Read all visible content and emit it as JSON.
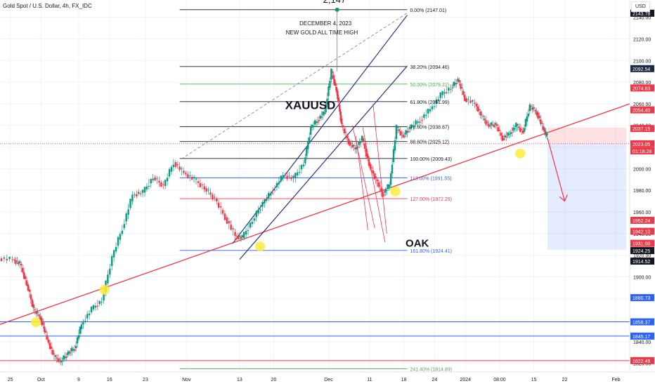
{
  "symbol_title": "Gold Spot / U.S. Dollar, 4h, FX_IDC",
  "currency_button": "USD",
  "chart_data": {
    "type": "candlestick",
    "y_ticks": [
      2140,
      2120,
      2100,
      2080,
      2060,
      2040,
      2020,
      2000,
      1980,
      1960,
      1940,
      1920,
      1900,
      1880,
      1860,
      1840,
      1820
    ],
    "ylim": [
      1812,
      2156
    ],
    "x_ticks": [
      {
        "label": "25",
        "x": 0.3
      },
      {
        "label": "Oct",
        "x": 1.2
      },
      {
        "label": "9",
        "x": 2.3
      },
      {
        "label": "16",
        "x": 3.2
      },
      {
        "label": "23",
        "x": 4.25
      },
      {
        "label": "Nov",
        "x": 5.45
      },
      {
        "label": "13",
        "x": 7.0
      },
      {
        "label": "20",
        "x": 8.0
      },
      {
        "label": "Dec",
        "x": 9.6
      },
      {
        "label": "11",
        "x": 10.8
      },
      {
        "label": "18",
        "x": 11.8
      },
      {
        "label": "24",
        "x": 12.7
      },
      {
        "label": "2024",
        "x": 13.6
      },
      {
        "label": "08:00",
        "x": 14.6
      },
      {
        "label": "15",
        "x": 15.6
      },
      {
        "label": "22",
        "x": 16.5
      },
      {
        "label": "Feb",
        "x": 18.0
      }
    ],
    "xlim": [
      0,
      18.4
    ],
    "price_path": [
      [
        0,
        1917
      ],
      [
        0.4,
        1916
      ],
      [
        0.6,
        1912
      ],
      [
        0.8,
        1893
      ],
      [
        1.0,
        1870
      ],
      [
        1.2,
        1862
      ],
      [
        1.4,
        1842
      ],
      [
        1.6,
        1826
      ],
      [
        1.8,
        1822
      ],
      [
        2.0,
        1829
      ],
      [
        2.2,
        1834
      ],
      [
        2.4,
        1856
      ],
      [
        2.7,
        1870
      ],
      [
        3.0,
        1878
      ],
      [
        3.3,
        1918
      ],
      [
        3.6,
        1945
      ],
      [
        3.9,
        1976
      ],
      [
        4.2,
        1978
      ],
      [
        4.5,
        1992
      ],
      [
        4.8,
        1984
      ],
      [
        5.1,
        2006
      ],
      [
        5.4,
        1996
      ],
      [
        5.7,
        1990
      ],
      [
        6.0,
        1982
      ],
      [
        6.3,
        1972
      ],
      [
        6.6,
        1955
      ],
      [
        6.9,
        1938
      ],
      [
        7.1,
        1936
      ],
      [
        7.4,
        1952
      ],
      [
        7.7,
        1968
      ],
      [
        8.0,
        1980
      ],
      [
        8.3,
        1994
      ],
      [
        8.6,
        1991
      ],
      [
        8.9,
        2005
      ],
      [
        9.1,
        2038
      ],
      [
        9.3,
        2045
      ],
      [
        9.5,
        2052
      ],
      [
        9.7,
        2090
      ],
      [
        9.85,
        2072
      ],
      [
        10.0,
        2040
      ],
      [
        10.2,
        2025
      ],
      [
        10.4,
        2018
      ],
      [
        10.6,
        2028
      ],
      [
        10.8,
        2004
      ],
      [
        11.0,
        1990
      ],
      [
        11.2,
        1976
      ],
      [
        11.4,
        1985
      ],
      [
        11.6,
        2038
      ],
      [
        11.8,
        2030
      ],
      [
        12.0,
        2038
      ],
      [
        12.3,
        2045
      ],
      [
        12.6,
        2055
      ],
      [
        12.9,
        2068
      ],
      [
        13.2,
        2075
      ],
      [
        13.4,
        2082
      ],
      [
        13.6,
        2065
      ],
      [
        13.9,
        2060
      ],
      [
        14.1,
        2048
      ],
      [
        14.3,
        2040
      ],
      [
        14.5,
        2041
      ],
      [
        14.7,
        2028
      ],
      [
        14.9,
        2032
      ],
      [
        15.1,
        2040
      ],
      [
        15.3,
        2034
      ],
      [
        15.5,
        2058
      ],
      [
        15.7,
        2052
      ],
      [
        15.9,
        2036
      ],
      [
        16.0,
        2030
      ]
    ],
    "fib_levels": [
      {
        "label": "0.00% (2147.01)",
        "price": 2147.01
      },
      {
        "label": "38.20% (2094.46)",
        "price": 2094.46
      },
      {
        "label": "50.00% (2078.22)",
        "price": 2078.22
      },
      {
        "label": "61.80% (2061.99)",
        "price": 2061.99
      },
      {
        "label": "78.60% (2038.87)",
        "price": 2038.87
      },
      {
        "label": "88.60% (2025.12)",
        "price": 2025.12
      },
      {
        "label": "100.00% (2009.43)",
        "price": 2009.43
      },
      {
        "label": "113.00% (1991.55)",
        "price": 1991.55
      },
      {
        "label": "127.00% (1972.29)",
        "price": 1972.29
      },
      {
        "label": "161.80% (1924.41)",
        "price": 1924.41
      },
      {
        "label": "241.40% (1814.89)",
        "price": 1814.89
      }
    ],
    "horizontal_levels": [
      {
        "label": "1858.37",
        "price": 1858.37
      },
      {
        "label": "1845.17",
        "price": 1845.17
      },
      {
        "label": "1822.49",
        "price": 1822.49
      }
    ],
    "price_tags": [
      {
        "label": "2143.78",
        "price": 2143.78,
        "color": "#131722"
      },
      {
        "label": "2092.54",
        "price": 2092.54,
        "color": "#1e2a44"
      },
      {
        "label": "2074.63",
        "price": 2074.63,
        "color": "#f23645"
      },
      {
        "label": "2054.40",
        "price": 2054.4,
        "color": "#f23645"
      },
      {
        "label": "2037.15",
        "price": 2037.15,
        "color": "#f23645"
      },
      {
        "label": "2023.05",
        "price": 2023.05,
        "color": "#f23645"
      },
      {
        "label": "01:18:28",
        "price": 2016.5,
        "color": "#f23645"
      },
      {
        "label": "1952.24",
        "price": 1952.24,
        "color": "#f23645"
      },
      {
        "label": "1942.10",
        "price": 1942.1,
        "color": "#f23645"
      },
      {
        "label": "1931.00",
        "price": 1931.0,
        "color": "#f23645"
      },
      {
        "label": "1924.25",
        "price": 1924.25,
        "color": "#131722"
      },
      {
        "label": "1914.52",
        "price": 1914.52,
        "color": "#131722"
      },
      {
        "label": "1880.73",
        "price": 1880.73,
        "color": "#2962ff"
      },
      {
        "label": "1858.37",
        "price": 1858.37,
        "color": "#2962ff"
      },
      {
        "label": "1845.17",
        "price": 1845.17,
        "color": "#2962ff"
      },
      {
        "label": "1822.49",
        "price": 1822.49,
        "color": "#f23645"
      }
    ],
    "last_price": 2023.05,
    "annotations": {
      "peak_value": "2,147",
      "date_note": "DECEMBER 4, 2023",
      "ath_note": "NEW GOLD ALL TIME HIGH",
      "symbol_note": "XAUUSD",
      "oak_note": "OAK"
    }
  },
  "colors": {
    "up": "#089981",
    "down": "#f23645",
    "trend": "#f23645",
    "channel": "#1a237e",
    "fib": "#131722",
    "fib_green": "#4caf50",
    "blue_level": "#2962ff",
    "highlight": "#ffeb3b"
  }
}
